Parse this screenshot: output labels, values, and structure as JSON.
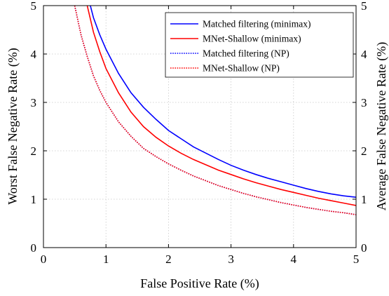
{
  "chart_data": {
    "type": "line",
    "xlabel": "False Positive Rate (%)",
    "ylabel": "Worst False Negative Rate (%)",
    "ylabel_right": "Average False Negative Rate (%)",
    "xlim": [
      0,
      5
    ],
    "ylim": [
      0,
      5
    ],
    "xticks": [
      "0",
      "1",
      "2",
      "3",
      "4",
      "5"
    ],
    "yticks": [
      "0",
      "1",
      "2",
      "3",
      "4",
      "5"
    ],
    "grid": true,
    "legend_position": "top-right",
    "series": [
      {
        "name": "Matched filtering (minimax)",
        "color": "#0000ff",
        "style": "solid",
        "x": [
          0.75,
          0.8,
          0.9,
          1.0,
          1.2,
          1.4,
          1.6,
          1.8,
          2.0,
          2.2,
          2.4,
          2.6,
          2.8,
          3.0,
          3.2,
          3.4,
          3.6,
          3.8,
          4.0,
          4.2,
          4.4,
          4.6,
          4.8,
          5.0
        ],
        "y": [
          5.0,
          4.75,
          4.4,
          4.1,
          3.6,
          3.2,
          2.9,
          2.65,
          2.42,
          2.25,
          2.08,
          1.95,
          1.82,
          1.7,
          1.6,
          1.51,
          1.43,
          1.36,
          1.29,
          1.22,
          1.16,
          1.11,
          1.07,
          1.04
        ]
      },
      {
        "name": "MNet-Shallow (minimax)",
        "color": "#ff0000",
        "style": "solid",
        "x": [
          0.7,
          0.8,
          0.9,
          1.0,
          1.2,
          1.4,
          1.6,
          1.8,
          2.0,
          2.2,
          2.4,
          2.6,
          2.8,
          3.0,
          3.2,
          3.4,
          3.6,
          3.8,
          4.0,
          4.2,
          4.4,
          4.6,
          4.8,
          5.0
        ],
        "y": [
          5.0,
          4.45,
          4.05,
          3.7,
          3.2,
          2.8,
          2.5,
          2.28,
          2.1,
          1.95,
          1.82,
          1.71,
          1.6,
          1.51,
          1.42,
          1.34,
          1.27,
          1.2,
          1.14,
          1.08,
          1.02,
          0.97,
          0.92,
          0.87
        ]
      },
      {
        "name": "Matched filtering (NP)",
        "color": "#0000ff",
        "style": "dotted",
        "x": [
          0.5,
          0.6,
          0.7,
          0.8,
          0.9,
          1.0,
          1.2,
          1.4,
          1.6,
          1.8,
          2.0,
          2.2,
          2.4,
          2.6,
          2.8,
          3.0,
          3.2,
          3.4,
          3.6,
          3.8,
          4.0,
          4.2,
          4.4,
          4.6,
          4.8,
          5.0
        ],
        "y": [
          5.0,
          4.4,
          3.95,
          3.55,
          3.25,
          3.0,
          2.6,
          2.3,
          2.05,
          1.88,
          1.73,
          1.6,
          1.48,
          1.38,
          1.28,
          1.2,
          1.12,
          1.05,
          0.99,
          0.93,
          0.88,
          0.83,
          0.79,
          0.75,
          0.72,
          0.68
        ]
      },
      {
        "name": "MNet-Shallow (NP)",
        "color": "#ff0000",
        "style": "dotted",
        "x": [
          0.5,
          0.6,
          0.7,
          0.8,
          0.9,
          1.0,
          1.2,
          1.4,
          1.6,
          1.8,
          2.0,
          2.2,
          2.4,
          2.6,
          2.8,
          3.0,
          3.2,
          3.4,
          3.6,
          3.8,
          4.0,
          4.2,
          4.4,
          4.6,
          4.8,
          5.0
        ],
        "y": [
          5.0,
          4.4,
          3.95,
          3.55,
          3.25,
          3.0,
          2.6,
          2.3,
          2.05,
          1.88,
          1.73,
          1.6,
          1.48,
          1.38,
          1.28,
          1.2,
          1.12,
          1.05,
          0.99,
          0.93,
          0.88,
          0.83,
          0.79,
          0.75,
          0.72,
          0.68
        ]
      }
    ]
  }
}
